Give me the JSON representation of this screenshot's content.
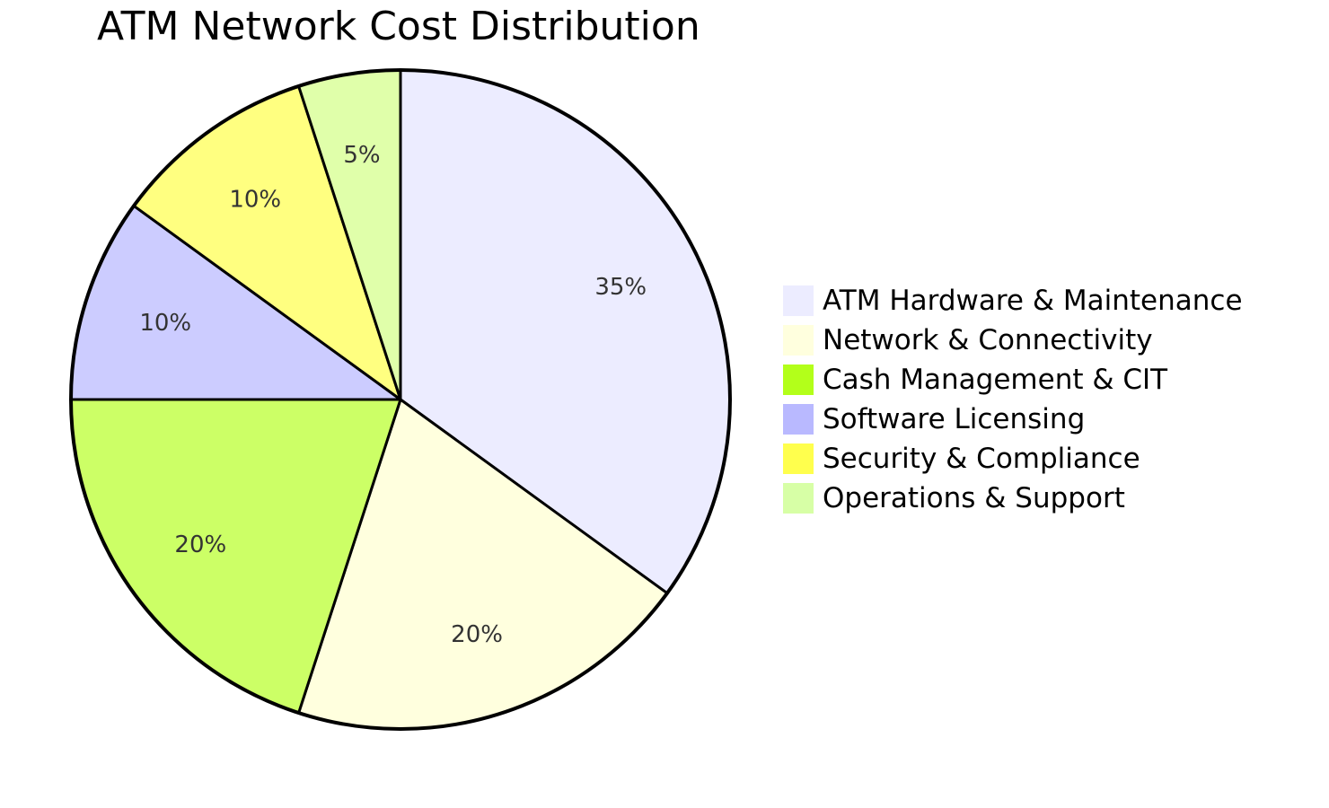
{
  "chart_data": {
    "type": "pie",
    "title": "ATM Network Cost Distribution",
    "slices": [
      {
        "label": "ATM Hardware & Maintenance",
        "value": 35,
        "display": "35%",
        "color": "#ECECFF"
      },
      {
        "label": "Network & Connectivity",
        "value": 20,
        "display": "20%",
        "color": "#FFFFDE"
      },
      {
        "label": "Cash Management & CIT",
        "value": 20,
        "display": "20%",
        "color": "#CCFF66"
      },
      {
        "label": "Software Licensing",
        "value": 10,
        "display": "10%",
        "color": "#CCCCFF"
      },
      {
        "label": "Security & Compliance",
        "value": 10,
        "display": "10%",
        "color": "#FFFF80"
      },
      {
        "label": "Operations & Support",
        "value": 5,
        "display": "5%",
        "color": "#E0FFAA"
      }
    ],
    "legend": {
      "placement": "right",
      "colors": [
        "#ECECFF",
        "#FFFFDE",
        "#B3FF1A",
        "#B9B9FF",
        "#FFFF4D",
        "#D7FFA6"
      ]
    },
    "stroke_color": "#000000",
    "label_color": "#333333"
  }
}
